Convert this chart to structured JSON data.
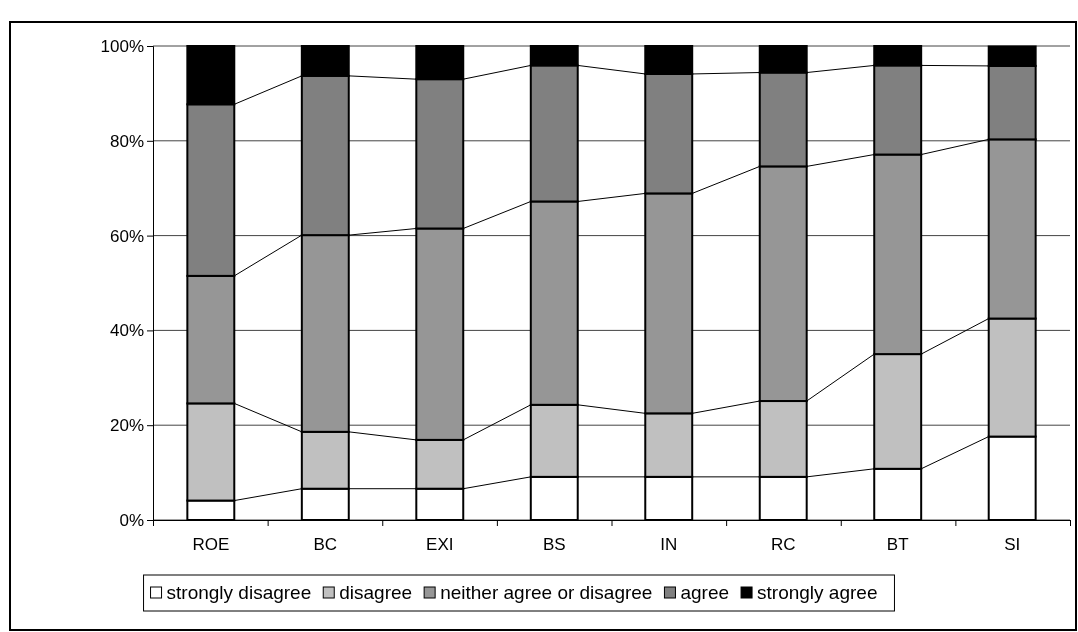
{
  "chart_data": {
    "type": "bar",
    "stacked": true,
    "categories": [
      "ROE",
      "BC",
      "EXI",
      "BS",
      "IN",
      "RC",
      "BT",
      "SI"
    ],
    "series": [
      {
        "name": "strongly disagree",
        "color": "#ffffff",
        "values": [
          4.1,
          6.6,
          6.6,
          9.1,
          9.1,
          9.1,
          10.8,
          17.6
        ]
      },
      {
        "name": "disagree",
        "color": "#c0c0c0",
        "values": [
          20.5,
          12.0,
          10.3,
          15.2,
          13.4,
          16.0,
          24.2,
          24.9
        ]
      },
      {
        "name": "neither agree or disagree",
        "color": "#969696",
        "values": [
          26.9,
          41.5,
          44.6,
          42.9,
          46.4,
          49.5,
          42.1,
          37.8
        ]
      },
      {
        "name": "agree",
        "color": "#808080",
        "values": [
          36.2,
          33.6,
          31.5,
          28.7,
          25.2,
          19.8,
          18.8,
          15.5
        ]
      },
      {
        "name": "strongly agree",
        "color": "#000000",
        "values": [
          12.3,
          6.3,
          7.0,
          4.1,
          5.9,
          5.6,
          4.1,
          4.1
        ]
      }
    ],
    "ylim": [
      0,
      100
    ],
    "yticks": [
      {
        "value": 0,
        "label": "0%"
      },
      {
        "value": 20,
        "label": "20%"
      },
      {
        "value": 40,
        "label": "40%"
      },
      {
        "value": 60,
        "label": "60%"
      },
      {
        "value": 80,
        "label": "80%"
      },
      {
        "value": 100,
        "label": "100%"
      }
    ],
    "grid": "y",
    "legend": "bottom"
  }
}
